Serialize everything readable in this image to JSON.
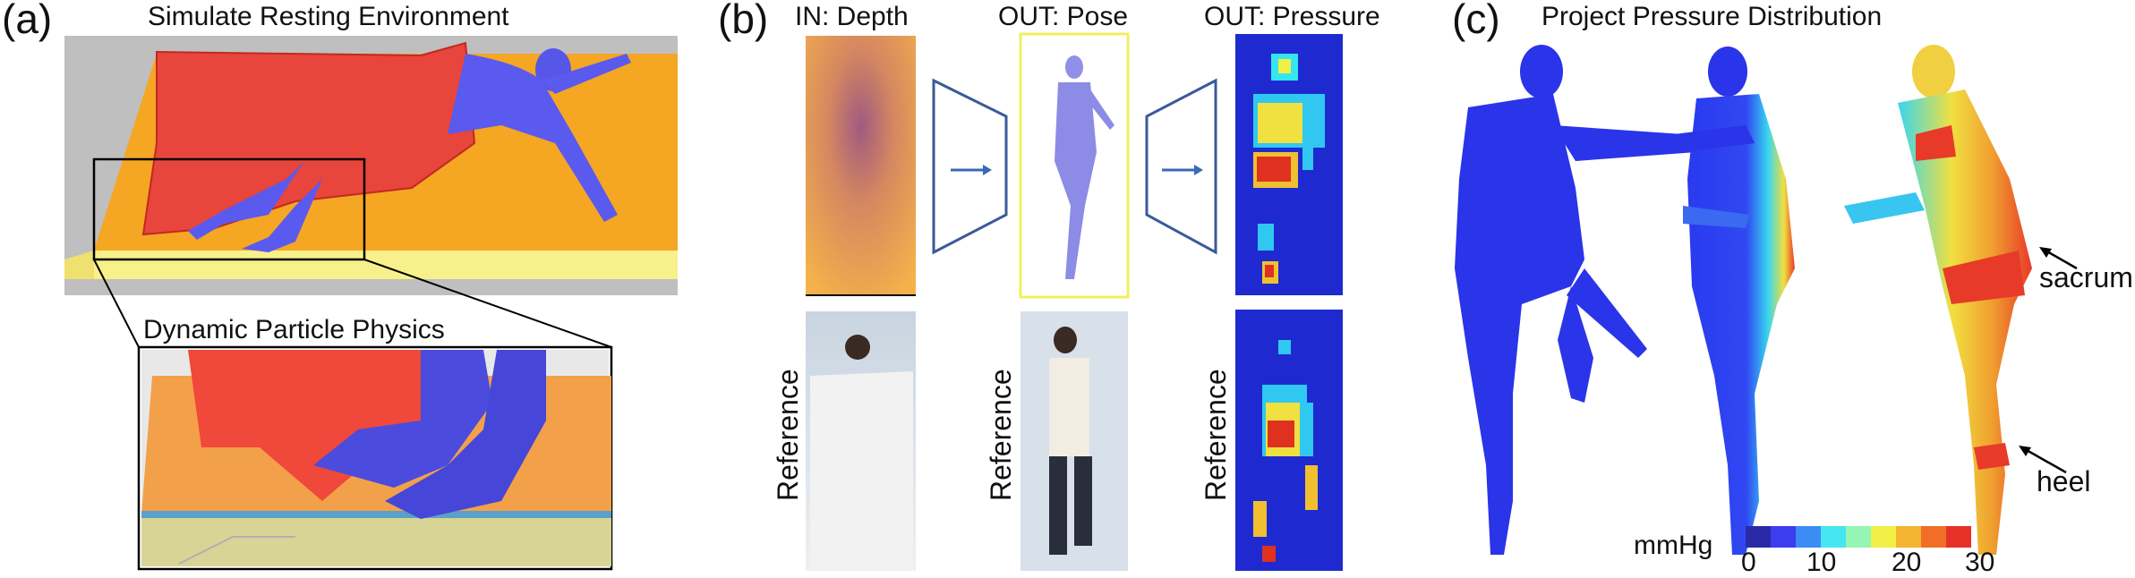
{
  "panels": {
    "a": {
      "letter": "(a)",
      "title": "Simulate Resting Environment",
      "inset_title": "Dynamic Particle Physics"
    },
    "b": {
      "letter": "(b)",
      "col1_title": "IN: Depth",
      "col2_title": "OUT: Pose",
      "col3_title": "OUT: Pressure",
      "reference_labels": [
        "Reference",
        "Reference",
        "Reference"
      ]
    },
    "c": {
      "letter": "(c)",
      "title": "Project Pressure Distribution",
      "callouts": [
        "sacrum",
        "heel"
      ],
      "colorbar": {
        "unit_label": "mmHg",
        "ticks": [
          "0",
          "10",
          "20",
          "30"
        ],
        "colors": [
          "#2a2aa8",
          "#3c3cf0",
          "#3c8cf5",
          "#46e6f0",
          "#96f5b4",
          "#f0f046",
          "#f5b432",
          "#f06e28",
          "#e63228"
        ]
      }
    }
  }
}
